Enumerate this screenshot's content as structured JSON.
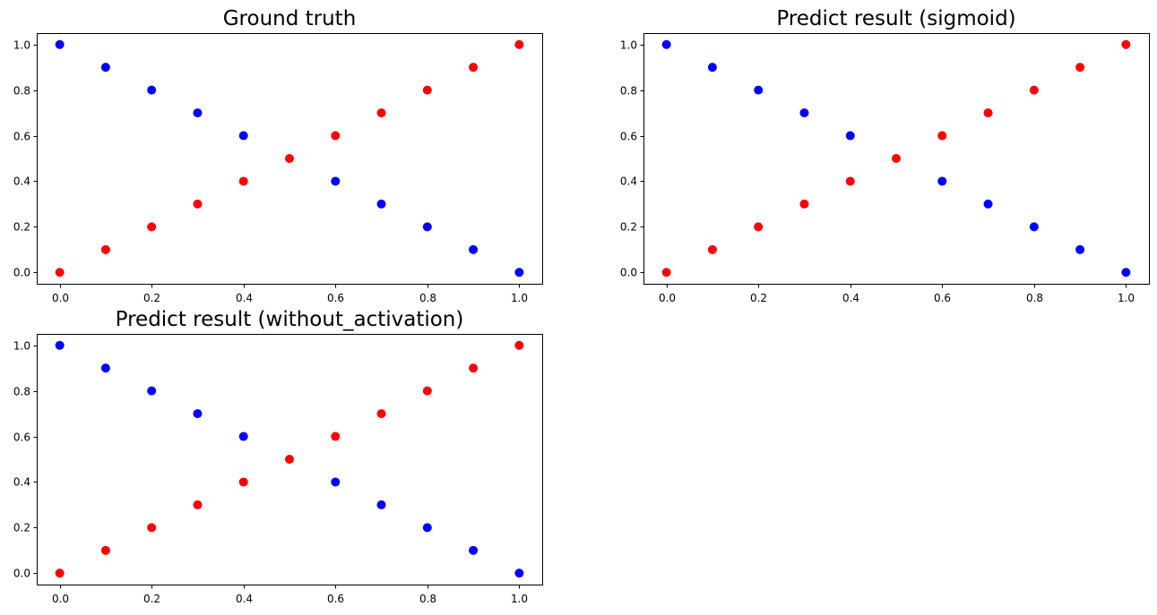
{
  "chart_data": [
    {
      "type": "scatter",
      "title": "Ground truth",
      "xlim": [
        -0.05,
        1.05
      ],
      "ylim": [
        -0.05,
        1.05
      ],
      "xticks": [
        "0.0",
        "0.2",
        "0.4",
        "0.6",
        "0.8",
        "1.0"
      ],
      "yticks": [
        "0.0",
        "0.2",
        "0.4",
        "0.6",
        "0.8",
        "1.0"
      ],
      "grid": false,
      "colors": {
        "class_0": "#0000ff",
        "class_1": "#ff0000"
      },
      "points": [
        {
          "x": 0.0,
          "y": 0.0,
          "cls": 1
        },
        {
          "x": 0.0,
          "y": 1.0,
          "cls": 0
        },
        {
          "x": 0.1,
          "y": 0.1,
          "cls": 1
        },
        {
          "x": 0.1,
          "y": 0.9,
          "cls": 0
        },
        {
          "x": 0.2,
          "y": 0.2,
          "cls": 1
        },
        {
          "x": 0.2,
          "y": 0.8,
          "cls": 0
        },
        {
          "x": 0.3,
          "y": 0.3,
          "cls": 1
        },
        {
          "x": 0.3,
          "y": 0.7,
          "cls": 0
        },
        {
          "x": 0.4,
          "y": 0.4,
          "cls": 1
        },
        {
          "x": 0.4,
          "y": 0.6,
          "cls": 0
        },
        {
          "x": 0.5,
          "y": 0.5,
          "cls": 1
        },
        {
          "x": 0.6,
          "y": 0.6,
          "cls": 1
        },
        {
          "x": 0.6,
          "y": 0.4,
          "cls": 0
        },
        {
          "x": 0.7,
          "y": 0.7,
          "cls": 1
        },
        {
          "x": 0.7,
          "y": 0.3,
          "cls": 0
        },
        {
          "x": 0.8,
          "y": 0.8,
          "cls": 1
        },
        {
          "x": 0.8,
          "y": 0.2,
          "cls": 0
        },
        {
          "x": 0.9,
          "y": 0.9,
          "cls": 1
        },
        {
          "x": 0.9,
          "y": 0.1,
          "cls": 0
        },
        {
          "x": 1.0,
          "y": 1.0,
          "cls": 1
        },
        {
          "x": 1.0,
          "y": 0.0,
          "cls": 0
        }
      ]
    },
    {
      "type": "scatter",
      "title": "Predict result (sigmoid)",
      "xlim": [
        -0.05,
        1.05
      ],
      "ylim": [
        -0.05,
        1.05
      ],
      "xticks": [
        "0.0",
        "0.2",
        "0.4",
        "0.6",
        "0.8",
        "1.0"
      ],
      "yticks": [
        "0.0",
        "0.2",
        "0.4",
        "0.6",
        "0.8",
        "1.0"
      ],
      "grid": false,
      "colors": {
        "class_0": "#0000ff",
        "class_1": "#ff0000"
      },
      "points": [
        {
          "x": 0.0,
          "y": 0.0,
          "cls": 1
        },
        {
          "x": 0.0,
          "y": 1.0,
          "cls": 0
        },
        {
          "x": 0.1,
          "y": 0.1,
          "cls": 1
        },
        {
          "x": 0.1,
          "y": 0.9,
          "cls": 0
        },
        {
          "x": 0.2,
          "y": 0.2,
          "cls": 1
        },
        {
          "x": 0.2,
          "y": 0.8,
          "cls": 0
        },
        {
          "x": 0.3,
          "y": 0.3,
          "cls": 1
        },
        {
          "x": 0.3,
          "y": 0.7,
          "cls": 0
        },
        {
          "x": 0.4,
          "y": 0.4,
          "cls": 1
        },
        {
          "x": 0.4,
          "y": 0.6,
          "cls": 0
        },
        {
          "x": 0.5,
          "y": 0.5,
          "cls": 1
        },
        {
          "x": 0.6,
          "y": 0.6,
          "cls": 1
        },
        {
          "x": 0.6,
          "y": 0.4,
          "cls": 0
        },
        {
          "x": 0.7,
          "y": 0.7,
          "cls": 1
        },
        {
          "x": 0.7,
          "y": 0.3,
          "cls": 0
        },
        {
          "x": 0.8,
          "y": 0.8,
          "cls": 1
        },
        {
          "x": 0.8,
          "y": 0.2,
          "cls": 0
        },
        {
          "x": 0.9,
          "y": 0.9,
          "cls": 1
        },
        {
          "x": 0.9,
          "y": 0.1,
          "cls": 0
        },
        {
          "x": 1.0,
          "y": 1.0,
          "cls": 1
        },
        {
          "x": 1.0,
          "y": 0.0,
          "cls": 0
        }
      ]
    },
    {
      "type": "scatter",
      "title": "Predict result (without_activation)",
      "xlim": [
        -0.05,
        1.05
      ],
      "ylim": [
        -0.05,
        1.05
      ],
      "xticks": [
        "0.0",
        "0.2",
        "0.4",
        "0.6",
        "0.8",
        "1.0"
      ],
      "yticks": [
        "0.0",
        "0.2",
        "0.4",
        "0.6",
        "0.8",
        "1.0"
      ],
      "grid": false,
      "colors": {
        "class_0": "#0000ff",
        "class_1": "#ff0000"
      },
      "points": [
        {
          "x": 0.0,
          "y": 0.0,
          "cls": 1
        },
        {
          "x": 0.0,
          "y": 1.0,
          "cls": 0
        },
        {
          "x": 0.1,
          "y": 0.1,
          "cls": 1
        },
        {
          "x": 0.1,
          "y": 0.9,
          "cls": 0
        },
        {
          "x": 0.2,
          "y": 0.2,
          "cls": 1
        },
        {
          "x": 0.2,
          "y": 0.8,
          "cls": 0
        },
        {
          "x": 0.3,
          "y": 0.3,
          "cls": 1
        },
        {
          "x": 0.3,
          "y": 0.7,
          "cls": 0
        },
        {
          "x": 0.4,
          "y": 0.4,
          "cls": 1
        },
        {
          "x": 0.4,
          "y": 0.6,
          "cls": 0
        },
        {
          "x": 0.5,
          "y": 0.5,
          "cls": 1
        },
        {
          "x": 0.6,
          "y": 0.6,
          "cls": 1
        },
        {
          "x": 0.6,
          "y": 0.4,
          "cls": 0
        },
        {
          "x": 0.7,
          "y": 0.7,
          "cls": 1
        },
        {
          "x": 0.7,
          "y": 0.3,
          "cls": 0
        },
        {
          "x": 0.8,
          "y": 0.8,
          "cls": 1
        },
        {
          "x": 0.8,
          "y": 0.2,
          "cls": 0
        },
        {
          "x": 0.9,
          "y": 0.9,
          "cls": 1
        },
        {
          "x": 0.9,
          "y": 0.1,
          "cls": 0
        },
        {
          "x": 1.0,
          "y": 1.0,
          "cls": 1
        },
        {
          "x": 1.0,
          "y": 0.0,
          "cls": 0
        }
      ]
    }
  ]
}
